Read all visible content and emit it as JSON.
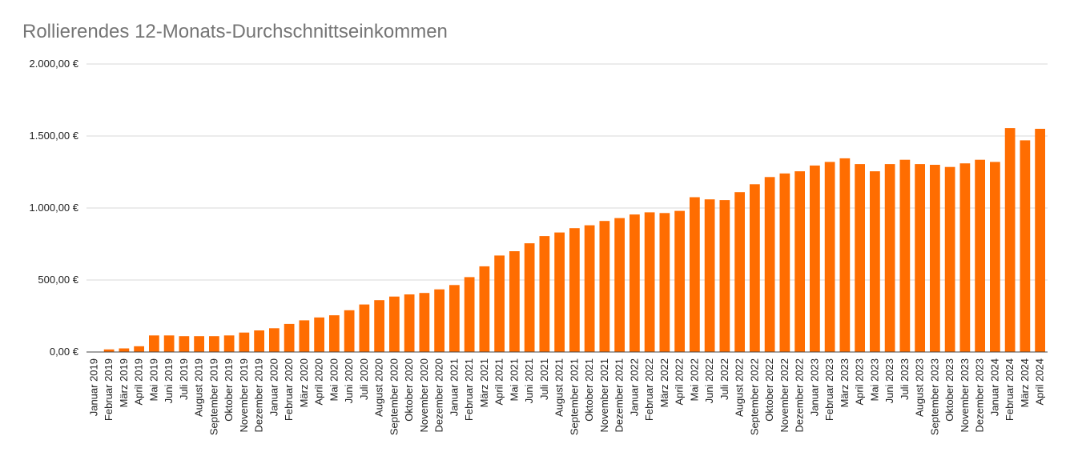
{
  "chart_data": {
    "type": "bar",
    "title": "Rollierendes 12-Monats-Durchschnittseinkommen",
    "xlabel": "",
    "ylabel": "",
    "ylim": [
      0,
      2000
    ],
    "yticks": [
      0,
      500,
      1000,
      1500,
      2000
    ],
    "ytick_labels": [
      "0,00 €",
      "500,00 €",
      "1.000,00 €",
      "1.500,00 €",
      "2.000,00 €"
    ],
    "grid": true,
    "legend": "none",
    "bar_color": "#ff6d01",
    "categories": [
      "Januar 2019",
      "Februar 2019",
      "März 2019",
      "April 2019",
      "Mai 2019",
      "Juni 2019",
      "Juli 2019",
      "August 2019",
      "September 2019",
      "Oktober 2019",
      "November 2019",
      "Dezember 2019",
      "Januar 2020",
      "Februar 2020",
      "März 2020",
      "April 2020",
      "Mai 2020",
      "Juni 2020",
      "Juli 2020",
      "August 2020",
      "September 2020",
      "Oktober 2020",
      "November 2020",
      "Dezember 2020",
      "Januar 2021",
      "Februar 2021",
      "März 2021",
      "April 2021",
      "Mai 2021",
      "Juni 2021",
      "Juli 2021",
      "August 2021",
      "September 2021",
      "Oktober 2021",
      "November 2021",
      "Dezember 2021",
      "Januar 2022",
      "Februar 2022",
      "März 2022",
      "April 2022",
      "Mai 2022",
      "Juni 2022",
      "Juli 2022",
      "August 2022",
      "September 2022",
      "Oktober 2022",
      "November 2022",
      "Dezember 2022",
      "Januar 2023",
      "Februar 2023",
      "März 2023",
      "April 2023",
      "Mai 2023",
      "Juni 2023",
      "Juli 2023",
      "August 2023",
      "September 2023",
      "Oktober 2023",
      "November 2023",
      "Dezember 2023",
      "Januar 2024",
      "Februar 2024",
      "März 2024",
      "April 2024"
    ],
    "values": [
      0,
      18,
      25,
      40,
      115,
      115,
      110,
      110,
      110,
      115,
      135,
      150,
      165,
      195,
      220,
      240,
      255,
      290,
      330,
      360,
      385,
      400,
      410,
      435,
      465,
      520,
      595,
      670,
      700,
      755,
      805,
      830,
      860,
      880,
      910,
      930,
      955,
      970,
      965,
      980,
      1075,
      1060,
      1055,
      1110,
      1165,
      1215,
      1240,
      1255,
      1295,
      1320,
      1345,
      1305,
      1255,
      1305,
      1335,
      1305,
      1300,
      1285,
      1310,
      1335,
      1320,
      1555,
      1470,
      1550
    ]
  }
}
